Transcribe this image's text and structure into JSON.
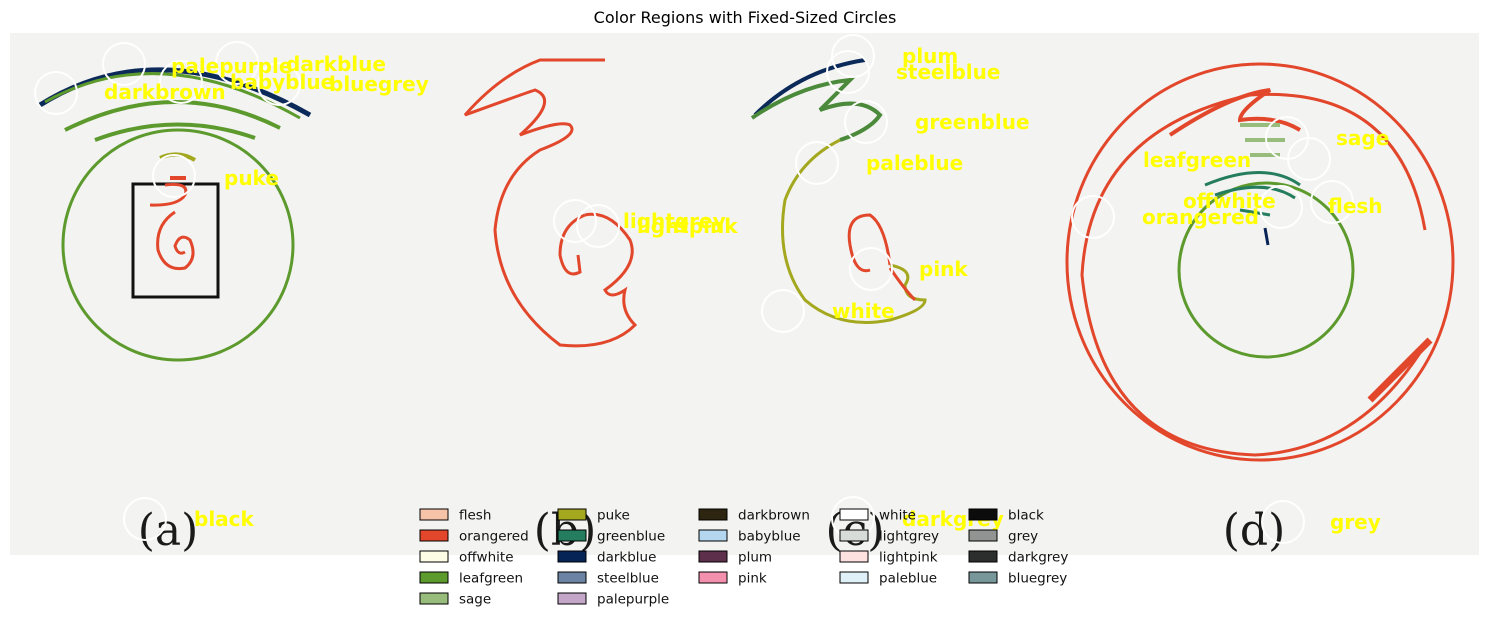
{
  "figure": {
    "title": "Color Regions with Fixed-Sized Circles",
    "panel_letters": [
      "(a)",
      "(b)",
      "(c)",
      "(d)"
    ]
  },
  "labels": {
    "palepurple": "palepurple",
    "darkblue": "darkblue",
    "babyblue": "babyblue",
    "bluegrey": "bluegrey",
    "darkbrown": "darkbrown",
    "puke": "puke",
    "lightgrey": "lightgrey",
    "lightpink": "lightpink",
    "plum": "plum",
    "steelblue": "steelblue",
    "greenblue": "greenblue",
    "paleblue": "paleblue",
    "pink": "pink",
    "white": "white",
    "sage": "sage",
    "leafgreen": "leafgreen",
    "offwhite": "offwhite",
    "orangered": "orangered",
    "flesh": "flesh",
    "black": "black",
    "darkgrey": "darkgrey",
    "grey": "grey"
  },
  "legend": {
    "columns": [
      [
        {
          "name": "flesh",
          "color": "#f6c3a8"
        },
        {
          "name": "orangered",
          "color": "#e2472b"
        },
        {
          "name": "offwhite",
          "color": "#fdfde6"
        },
        {
          "name": "leafgreen",
          "color": "#5d9a2d"
        },
        {
          "name": "sage",
          "color": "#97bc7c"
        }
      ],
      [
        {
          "name": "puke",
          "color": "#a3a81f"
        },
        {
          "name": "greenblue",
          "color": "#247d5e"
        },
        {
          "name": "darkblue",
          "color": "#072456"
        },
        {
          "name": "steelblue",
          "color": "#6b84a3"
        },
        {
          "name": "palepurple",
          "color": "#c3a6c8"
        }
      ],
      [
        {
          "name": "darkbrown",
          "color": "#2e2510"
        },
        {
          "name": "babyblue",
          "color": "#b5d6ef"
        },
        {
          "name": "plum",
          "color": "#5e2f4b"
        },
        {
          "name": "pink",
          "color": "#f390ae"
        }
      ],
      [
        {
          "name": "white",
          "color": "#ffffff"
        },
        {
          "name": "lightgrey",
          "color": "#d8dcd8"
        },
        {
          "name": "lightpink",
          "color": "#fde0e0"
        },
        {
          "name": "paleblue",
          "color": "#dff0f8"
        }
      ],
      [
        {
          "name": "black",
          "color": "#0c0c0c"
        },
        {
          "name": "grey",
          "color": "#929393"
        },
        {
          "name": "darkgrey",
          "color": "#2b2e2d"
        },
        {
          "name": "bluegrey",
          "color": "#78979b"
        }
      ]
    ]
  }
}
